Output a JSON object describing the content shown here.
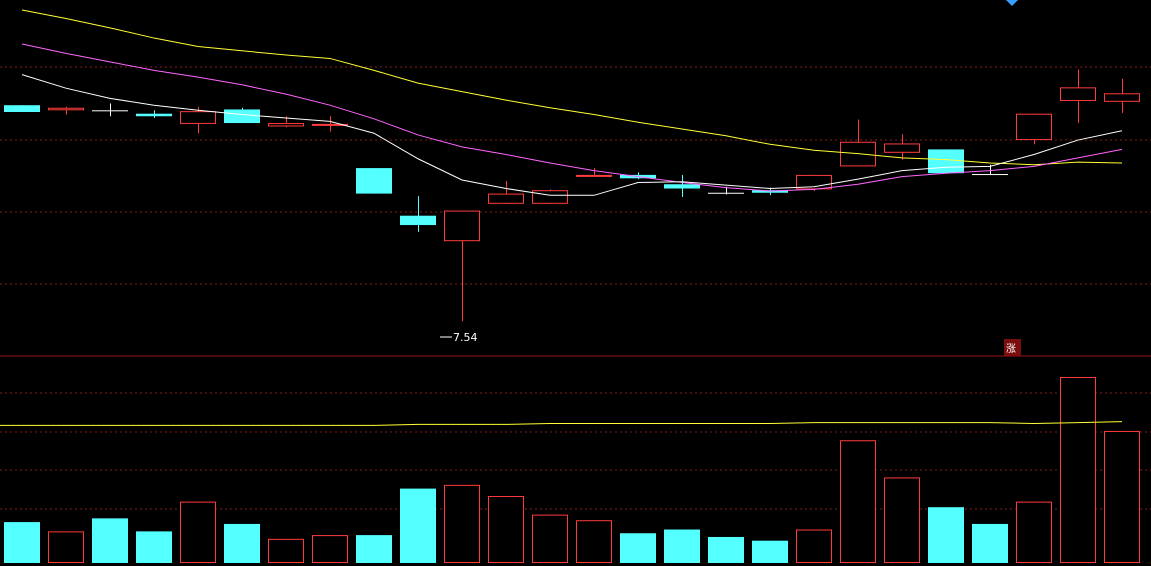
{
  "chart_data": {
    "type": "candlestick",
    "price_range": [
      7.2,
      11.2
    ],
    "volume_range": [
      0,
      1.0
    ],
    "colors": {
      "up": "#ff3c3c",
      "down": "#54ffff",
      "flat": "#ffffff",
      "grid": "#8a1c1c",
      "ma_short": "#ffffff",
      "ma_mid": "#ff66ff",
      "ma_long": "#ffff33",
      "vol_ma": "#ffff33",
      "badge_bg": "#7a0e0e"
    },
    "candles": [
      {
        "o": 10.08,
        "h": 10.08,
        "l": 10.0,
        "c": 10.0,
        "v": 0.22
      },
      {
        "o": 10.02,
        "h": 10.06,
        "l": 9.97,
        "c": 10.05,
        "v": 0.17
      },
      {
        "o": 10.02,
        "h": 10.1,
        "l": 9.95,
        "c": 10.02,
        "v": 0.24
      },
      {
        "o": 9.98,
        "h": 10.02,
        "l": 9.93,
        "c": 9.95,
        "v": 0.17
      },
      {
        "o": 9.86,
        "h": 10.06,
        "l": 9.75,
        "c": 10.01,
        "v": 0.33
      },
      {
        "o": 10.03,
        "h": 10.05,
        "l": 9.87,
        "c": 9.87,
        "v": 0.21
      },
      {
        "o": 9.83,
        "h": 9.95,
        "l": 9.82,
        "c": 9.87,
        "v": 0.13
      },
      {
        "o": 9.85,
        "h": 9.95,
        "l": 9.77,
        "c": 9.86,
        "v": 0.15
      },
      {
        "o": 9.34,
        "h": 9.34,
        "l": 9.04,
        "c": 9.04,
        "v": 0.15
      },
      {
        "o": 8.78,
        "h": 9.01,
        "l": 8.59,
        "c": 8.67,
        "v": 0.4
      },
      {
        "o": 8.48,
        "h": 8.84,
        "l": 7.54,
        "c": 8.84,
        "v": 0.42
      },
      {
        "o": 8.92,
        "h": 9.19,
        "l": 8.92,
        "c": 9.04,
        "v": 0.36
      },
      {
        "o": 8.92,
        "h": 9.09,
        "l": 8.92,
        "c": 9.08,
        "v": 0.26
      },
      {
        "o": 9.24,
        "h": 9.34,
        "l": 9.24,
        "c": 9.26,
        "v": 0.23
      },
      {
        "o": 9.26,
        "h": 9.29,
        "l": 9.21,
        "c": 9.22,
        "v": 0.16
      },
      {
        "o": 9.15,
        "h": 9.26,
        "l": 9.0,
        "c": 9.1,
        "v": 0.18
      },
      {
        "o": 9.05,
        "h": 9.12,
        "l": 9.03,
        "c": 9.05,
        "v": 0.14
      },
      {
        "o": 9.08,
        "h": 9.11,
        "l": 9.02,
        "c": 9.05,
        "v": 0.12
      },
      {
        "o": 9.09,
        "h": 9.26,
        "l": 9.07,
        "c": 9.26,
        "v": 0.18
      },
      {
        "o": 9.36,
        "h": 9.91,
        "l": 9.36,
        "c": 9.65,
        "v": 0.66
      },
      {
        "o": 9.52,
        "h": 9.74,
        "l": 9.44,
        "c": 9.63,
        "v": 0.46
      },
      {
        "o": 9.56,
        "h": 9.56,
        "l": 9.28,
        "c": 9.28,
        "v": 0.3
      },
      {
        "o": 9.27,
        "h": 9.38,
        "l": 9.26,
        "c": 9.27,
        "v": 0.21
      },
      {
        "o": 9.67,
        "h": 9.98,
        "l": 9.62,
        "c": 9.98,
        "v": 0.33
      },
      {
        "o": 10.13,
        "h": 10.5,
        "l": 9.87,
        "c": 10.29,
        "v": 1.0
      },
      {
        "o": 10.12,
        "h": 10.39,
        "l": 9.99,
        "c": 10.22,
        "v": 0.71
      }
    ],
    "ma_short": [
      10.44,
      10.28,
      10.16,
      10.08,
      10.02,
      9.97,
      9.93,
      9.89,
      9.75,
      9.45,
      9.2,
      9.1,
      9.02,
      9.02,
      9.17,
      9.18,
      9.14,
      9.1,
      9.12,
      9.21,
      9.31,
      9.35,
      9.36,
      9.5,
      9.67,
      9.78
    ],
    "ma_mid": [
      10.8,
      10.69,
      10.59,
      10.49,
      10.41,
      10.32,
      10.21,
      10.08,
      9.92,
      9.73,
      9.59,
      9.5,
      9.4,
      9.31,
      9.24,
      9.17,
      9.11,
      9.07,
      9.09,
      9.15,
      9.24,
      9.28,
      9.31,
      9.36,
      9.46,
      9.56
    ],
    "ma_long": [
      11.2,
      11.1,
      10.99,
      10.87,
      10.77,
      10.72,
      10.67,
      10.63,
      10.49,
      10.34,
      10.24,
      10.14,
      10.05,
      9.97,
      9.88,
      9.8,
      9.72,
      9.62,
      9.55,
      9.51,
      9.46,
      9.44,
      9.4,
      9.38,
      9.41,
      9.4
    ],
    "vol_ma": [
      0.74,
      0.74,
      0.74,
      0.74,
      0.74,
      0.74,
      0.74,
      0.74,
      0.74,
      0.745,
      0.745,
      0.745,
      0.75,
      0.75,
      0.75,
      0.75,
      0.75,
      0.75,
      0.755,
      0.755,
      0.755,
      0.755,
      0.755,
      0.75,
      0.755,
      0.76
    ],
    "low_label": "7.54",
    "badge_label": "涨"
  }
}
